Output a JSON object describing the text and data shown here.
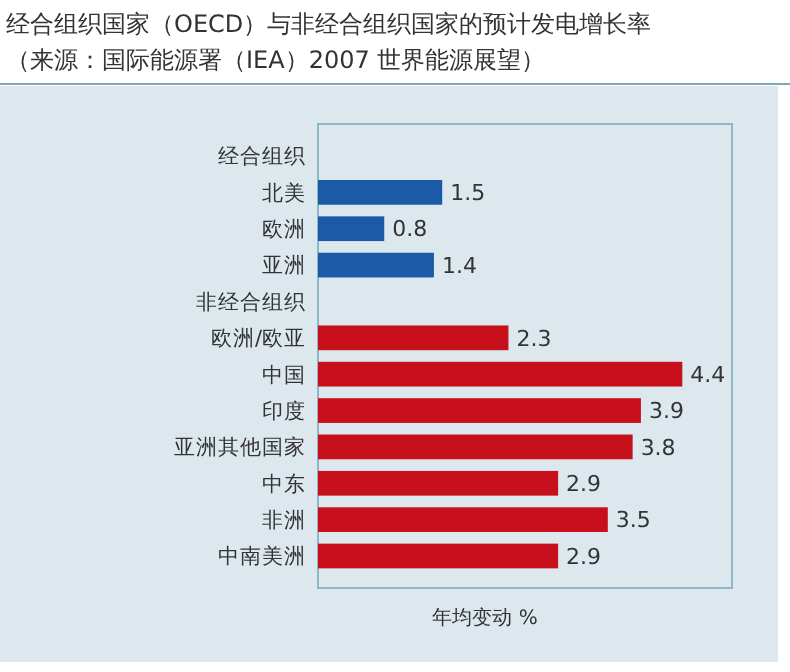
{
  "chart_data": {
    "type": "bar",
    "orientation": "horizontal",
    "title": "经合组织国家（OECD）与非经合组织国家的预计发电增长率",
    "subtitle": "（来源：国际能源署（IEA）2007 世界能源展望）",
    "xlabel": "年均变动 %",
    "categories": [
      "经合组织",
      "北美",
      "欧洲",
      "亚洲",
      "非经合组织",
      "欧洲/欧亚",
      "中国",
      "印度",
      "亚洲其他国家",
      "中东",
      "非洲",
      "中南美洲"
    ],
    "series": [
      {
        "color": "#1a5aa6",
        "values": [
          null,
          1.5,
          0.8,
          1.4,
          null,
          null,
          null,
          null,
          null,
          null,
          null,
          null
        ]
      },
      {
        "color": "#c8101c",
        "values": [
          null,
          null,
          null,
          null,
          null,
          2.3,
          4.4,
          3.9,
          3.8,
          2.9,
          3.5,
          2.9
        ]
      }
    ],
    "xlim": [
      0,
      5
    ],
    "data_labels": true
  }
}
